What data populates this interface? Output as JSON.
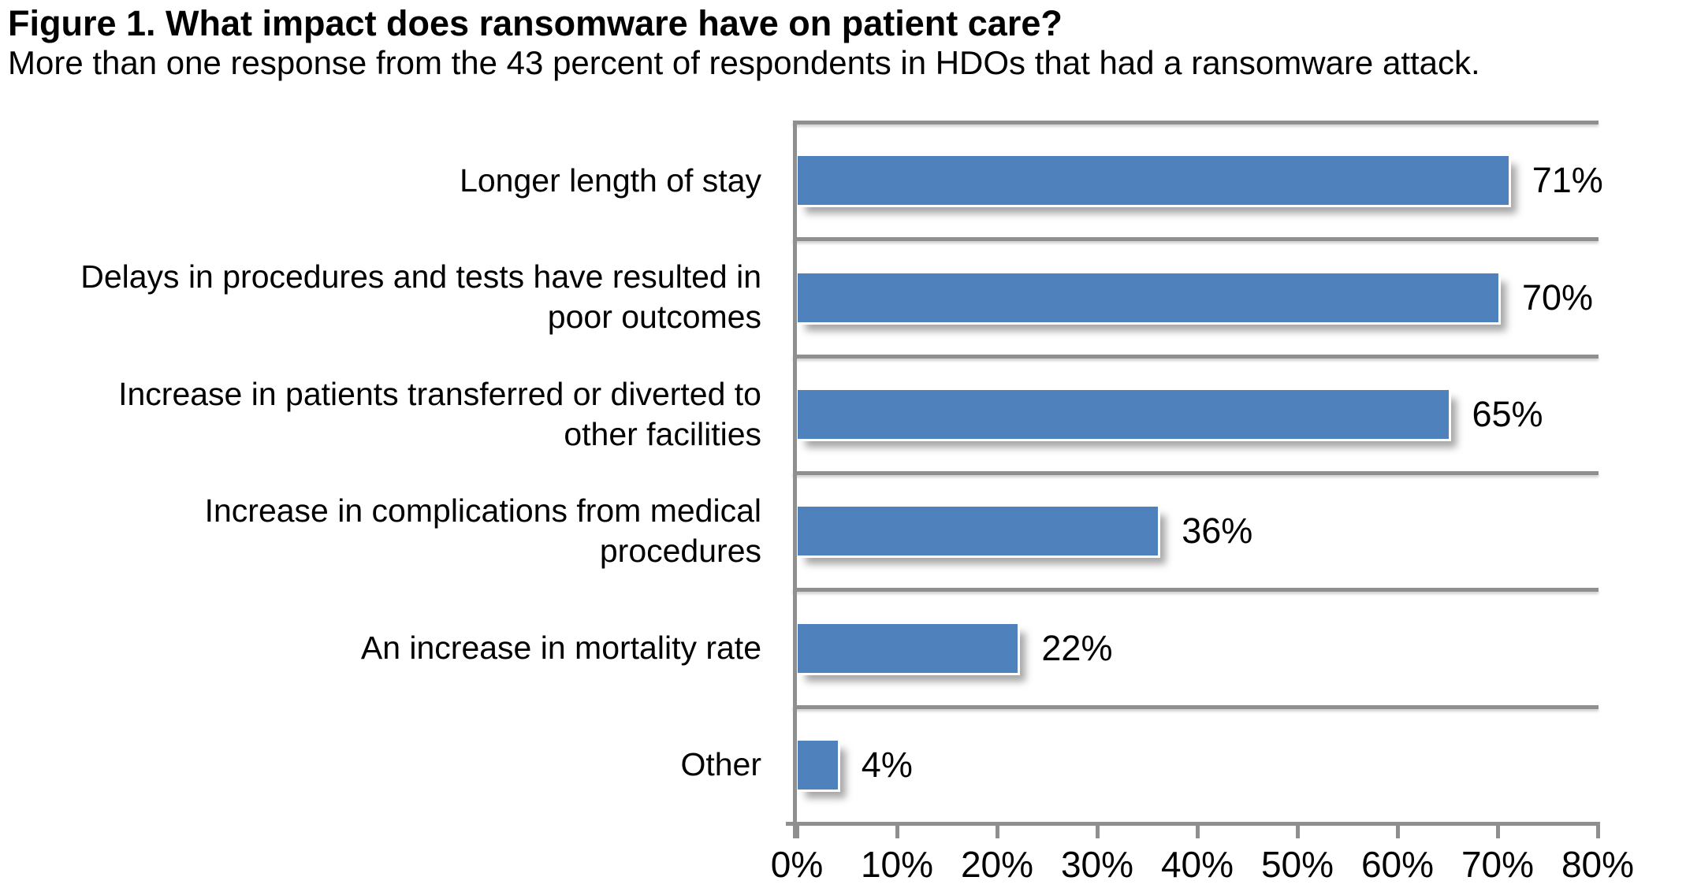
{
  "figure": {
    "title": "Figure 1. What impact does ransomware have on patient care?",
    "subtitle": "More than one response from the 43 percent of respondents in HDOs that had a ransomware attack."
  },
  "chart_data": {
    "type": "bar",
    "orientation": "horizontal",
    "title": "Figure 1. What impact does ransomware have on patient care?",
    "subtitle": "More than one response from the 43 percent of respondents in HDOs that had a ransomware attack.",
    "categories": [
      "Longer length of stay",
      "Delays in procedures and tests have resulted in\npoor outcomes",
      "Increase in patients transferred or diverted to\nother facilities",
      "Increase in complications from medical\nprocedures",
      "An increase in mortality rate",
      "Other"
    ],
    "values": [
      71,
      70,
      65,
      36,
      22,
      4
    ],
    "value_labels": [
      "71%",
      "70%",
      "65%",
      "36%",
      "22%",
      "4%"
    ],
    "xlabel": "",
    "ylabel": "",
    "xlim": [
      0,
      80
    ],
    "x_ticks": [
      "0%",
      "10%",
      "20%",
      "30%",
      "40%",
      "50%",
      "60%",
      "70%",
      "80%"
    ],
    "x_tick_values": [
      0,
      10,
      20,
      30,
      40,
      50,
      60,
      70,
      80
    ],
    "grid": "horizontal row separators",
    "legend": "none",
    "bar_color": "#4F81BD",
    "axis_color": "#8f8f8f",
    "text_color": "#000000"
  }
}
